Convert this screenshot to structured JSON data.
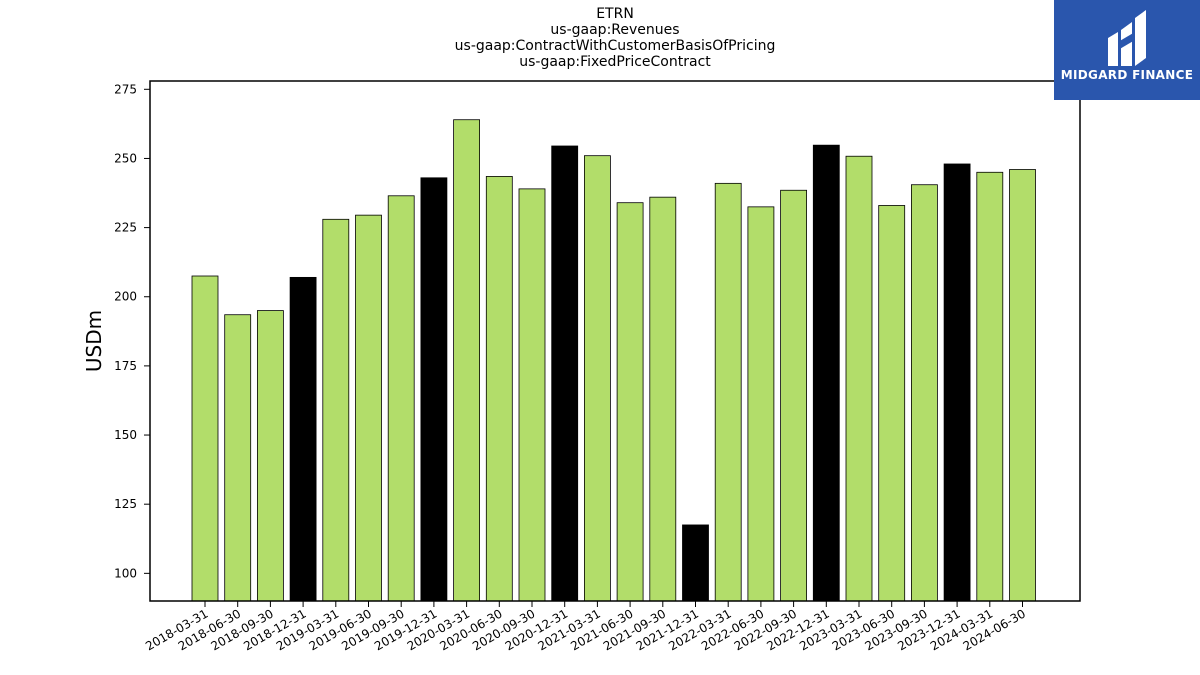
{
  "title_lines": [
    "ETRN",
    "us-gaap:Revenues",
    "us-gaap:ContractWithCustomerBasisOfPricing",
    "us-gaap:FixedPriceContract"
  ],
  "logo": {
    "text": "MIDGARD FINANCE",
    "color": "#2a56ad"
  },
  "chart_data": {
    "type": "bar",
    "ylabel": "USDm",
    "xlabel": "",
    "ylim": [
      90,
      278
    ],
    "yticks": [
      100,
      125,
      150,
      175,
      200,
      225,
      250,
      275
    ],
    "grid": false,
    "colors": {
      "regular": "#b2dd6a",
      "year_end": "#000000",
      "edge": "#000000"
    },
    "categories": [
      "2018-03-31",
      "2018-06-30",
      "2018-09-30",
      "2018-12-31",
      "2019-03-31",
      "2019-06-30",
      "2019-09-30",
      "2019-12-31",
      "2020-03-31",
      "2020-06-30",
      "2020-09-30",
      "2020-12-31",
      "2021-03-31",
      "2021-06-30",
      "2021-09-30",
      "2021-12-31",
      "2022-03-31",
      "2022-06-30",
      "2022-09-30",
      "2022-12-31",
      "2023-03-31",
      "2023-06-30",
      "2023-09-30",
      "2023-12-31",
      "2024-03-31",
      "2024-06-30"
    ],
    "values": [
      207.5,
      193.5,
      195,
      207,
      228,
      229.5,
      236.5,
      243,
      264,
      243.5,
      239,
      254.5,
      251,
      234,
      236,
      117.5,
      241,
      232.5,
      238.5,
      254.8,
      250.8,
      233,
      240.5,
      248,
      245,
      246
    ],
    "highlight": [
      false,
      false,
      false,
      true,
      false,
      false,
      false,
      true,
      false,
      false,
      false,
      true,
      false,
      false,
      false,
      true,
      false,
      false,
      false,
      true,
      false,
      false,
      false,
      true,
      false,
      false
    ]
  }
}
